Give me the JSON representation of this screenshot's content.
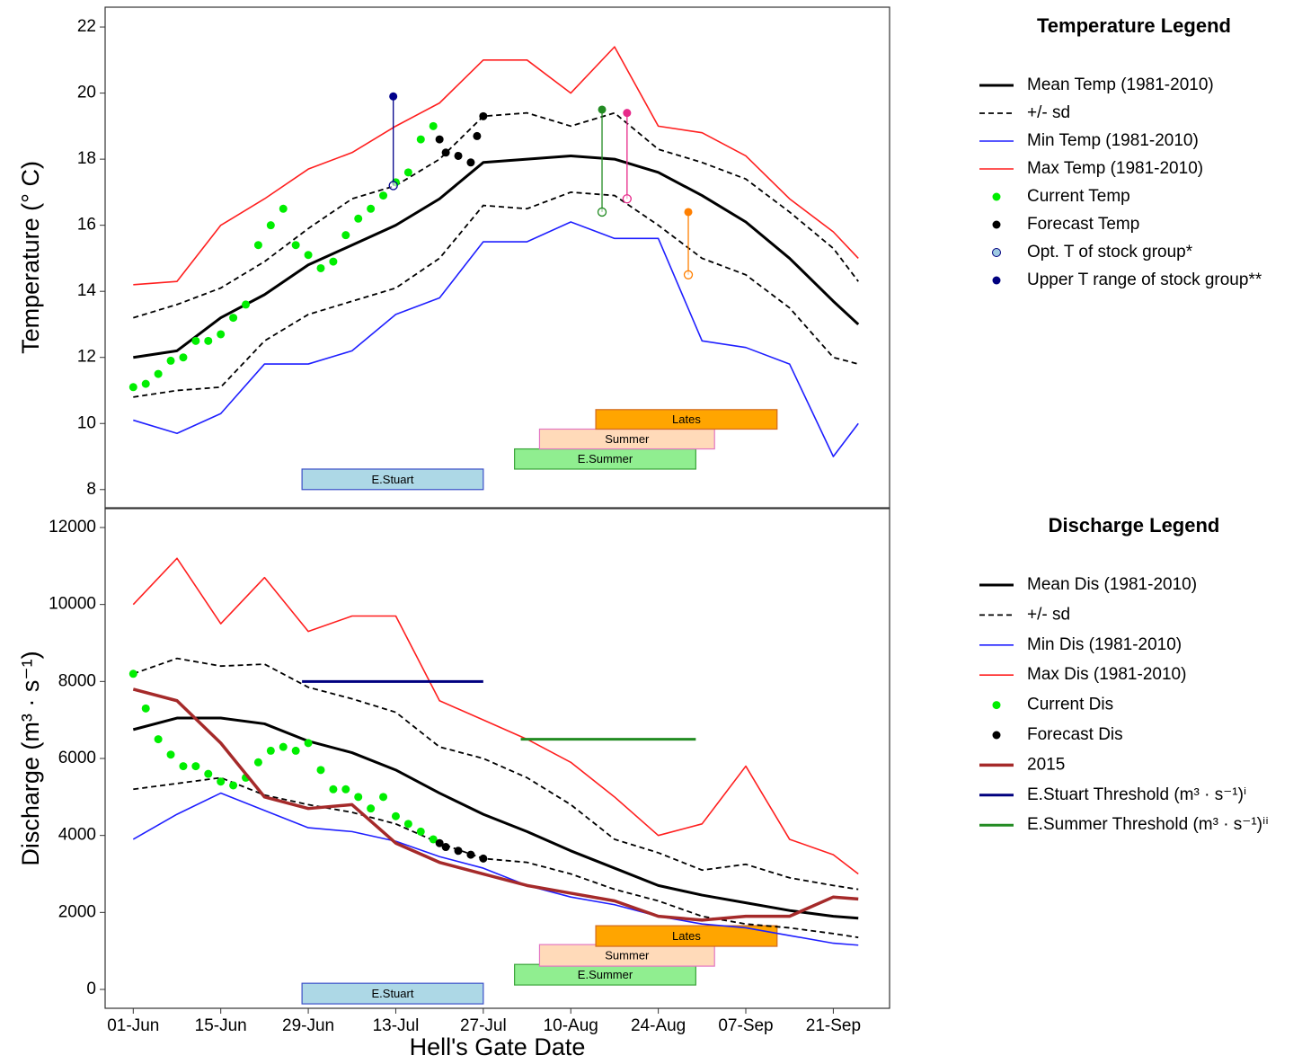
{
  "chart_data": [
    {
      "type": "line",
      "legend_title": "Temperature Legend",
      "y_label": "Temperature (° C)",
      "xlim": [
        -4.5,
        121
      ],
      "ylim": [
        7.45,
        22.6
      ],
      "yticks": [
        8,
        10,
        12,
        14,
        16,
        18,
        20,
        22
      ],
      "x": [
        0,
        7,
        14,
        21,
        28,
        35,
        42,
        49,
        56,
        63,
        70,
        77,
        84,
        91,
        98,
        105,
        112,
        116
      ],
      "series": [
        {
          "name": "Mean Temp (1981-2010)",
          "color": "#000000",
          "style": "solid",
          "values": [
            12.0,
            12.2,
            13.2,
            13.9,
            14.8,
            15.4,
            16.0,
            16.8,
            17.9,
            18.0,
            18.1,
            18.0,
            17.6,
            16.9,
            16.1,
            15.0,
            13.7,
            13.0
          ]
        },
        {
          "name": "+/- sd",
          "color": "#000000",
          "style": "band",
          "upper": [
            13.2,
            13.6,
            14.1,
            14.9,
            15.9,
            16.8,
            17.2,
            18.0,
            19.3,
            19.4,
            19.0,
            19.4,
            18.3,
            17.9,
            17.4,
            16.4,
            15.3,
            14.3
          ],
          "lower": [
            10.8,
            11.0,
            11.1,
            12.5,
            13.3,
            13.7,
            14.1,
            15.0,
            16.6,
            16.5,
            17.0,
            16.9,
            16.0,
            15.0,
            14.5,
            13.5,
            12.0,
            11.8
          ]
        },
        {
          "name": "Min Temp (1981-2010)",
          "color": "#1f1fff",
          "style": "thin",
          "values": [
            10.1,
            9.7,
            10.3,
            11.8,
            11.8,
            12.2,
            13.3,
            13.8,
            15.5,
            15.5,
            16.1,
            15.6,
            15.6,
            12.5,
            12.3,
            11.8,
            9.0,
            10.0
          ]
        },
        {
          "name": "Max Temp (1981-2010)",
          "color": "#ff1f1f",
          "style": "thin",
          "values": [
            14.2,
            14.3,
            16.0,
            16.8,
            17.7,
            18.2,
            19.0,
            19.7,
            21.0,
            21.0,
            20.0,
            21.4,
            19.0,
            18.8,
            18.1,
            16.8,
            15.8,
            15.0
          ]
        },
        {
          "name": "Current Temp",
          "color": "#00ee00",
          "style": "points",
          "x": [
            0,
            2,
            4,
            6,
            8,
            10,
            12,
            14,
            16,
            18,
            20,
            22,
            24,
            26,
            28,
            30,
            32,
            34,
            36,
            38,
            40,
            42,
            44,
            46,
            48
          ],
          "values": [
            11.1,
            11.2,
            11.5,
            11.9,
            12.0,
            12.5,
            12.5,
            12.7,
            13.2,
            13.6,
            15.4,
            16.0,
            16.5,
            15.4,
            15.1,
            14.7,
            14.9,
            15.7,
            16.2,
            16.5,
            16.9,
            17.3,
            17.6,
            18.6,
            19.0
          ]
        },
        {
          "name": "Forecast Temp",
          "color": "#000000",
          "style": "points",
          "x": [
            49,
            50,
            52,
            54,
            55,
            56
          ],
          "values": [
            18.6,
            18.2,
            18.1,
            17.9,
            18.7,
            19.3
          ]
        }
      ],
      "opt_label": "Opt. T of stock group*",
      "opt_color": "#9ecae1",
      "upper_label": "Upper T range of stock group**",
      "upper_color": "#00007f",
      "groups": [
        {
          "name": "E.Stuart",
          "fill": "#add8e6",
          "border": "#3b50c8",
          "color": "#00008b",
          "xrange": [
            27,
            56
          ],
          "yrange": [
            8.0,
            8.62
          ],
          "marker_x": 41.6,
          "opt": 17.2,
          "upper": 19.9
        },
        {
          "name": "E.Summer",
          "fill": "#90ee90",
          "border": "#3aa33a",
          "color": "#228b22",
          "xrange": [
            61,
            90
          ],
          "yrange": [
            8.62,
            9.23
          ],
          "marker_x": 75,
          "opt": 16.4,
          "upper": 19.5
        },
        {
          "name": "Summer",
          "fill": "#ffdab9",
          "border": "#e377c2",
          "color": "#e7298a",
          "xrange": [
            65,
            93
          ],
          "yrange": [
            9.23,
            9.83
          ],
          "marker_x": 79,
          "opt": 16.8,
          "upper": 19.4
        },
        {
          "name": "Lates",
          "fill": "#ffa500",
          "border": "#d2691e",
          "color": "#ff7f00",
          "xrange": [
            74,
            103
          ],
          "yrange": [
            9.83,
            10.42
          ],
          "marker_x": 88.8,
          "opt": 14.5,
          "upper": 16.4
        }
      ]
    },
    {
      "type": "line",
      "legend_title": "Discharge Legend",
      "y_label": "Discharge (m³ · s⁻¹)",
      "x_label": "Hell's Gate Date",
      "xlim": [
        -4.5,
        121
      ],
      "ylim": [
        -490,
        12490
      ],
      "yticks": [
        0,
        2000,
        4000,
        6000,
        8000,
        10000,
        12000
      ],
      "xticks": [
        {
          "value": 0,
          "label": "01-Jun"
        },
        {
          "value": 14,
          "label": "15-Jun"
        },
        {
          "value": 28,
          "label": "29-Jun"
        },
        {
          "value": 42,
          "label": "13-Jul"
        },
        {
          "value": 56,
          "label": "27-Jul"
        },
        {
          "value": 70,
          "label": "10-Aug"
        },
        {
          "value": 84,
          "label": "24-Aug"
        },
        {
          "value": 98,
          "label": "07-Sep"
        },
        {
          "value": 112,
          "label": "21-Sep"
        }
      ],
      "x": [
        0,
        7,
        14,
        21,
        28,
        35,
        42,
        49,
        56,
        63,
        70,
        77,
        84,
        91,
        98,
        105,
        112,
        116
      ],
      "series": [
        {
          "name": "Mean Dis (1981-2010)",
          "color": "#000000",
          "style": "solid",
          "values": [
            6750,
            7050,
            7050,
            6900,
            6450,
            6150,
            5700,
            5100,
            4550,
            4100,
            3600,
            3150,
            2700,
            2450,
            2250,
            2050,
            1900,
            1850
          ]
        },
        {
          "name": "+/- sd",
          "color": "#000000",
          "style": "band",
          "upper": [
            8200,
            8600,
            8400,
            8450,
            7850,
            7550,
            7200,
            6300,
            6000,
            5500,
            4800,
            3900,
            3550,
            3100,
            3250,
            2900,
            2700,
            2600
          ],
          "lower": [
            5200,
            5350,
            5500,
            5050,
            4800,
            4600,
            4300,
            3800,
            3400,
            3300,
            3000,
            2600,
            2300,
            1900,
            1700,
            1600,
            1450,
            1350
          ]
        },
        {
          "name": "Min Dis (1981-2010)",
          "color": "#1f1fff",
          "style": "thin",
          "values": [
            3900,
            4550,
            5100,
            4650,
            4200,
            4100,
            3850,
            3450,
            3150,
            2700,
            2400,
            2200,
            1900,
            1700,
            1600,
            1400,
            1200,
            1150
          ]
        },
        {
          "name": "Max Dis (1981-2010)",
          "color": "#ff1f1f",
          "style": "thin",
          "values": [
            10000,
            11200,
            9500,
            10700,
            9300,
            9700,
            9700,
            7500,
            7000,
            6500,
            5900,
            5000,
            4000,
            4300,
            5800,
            3900,
            3500,
            3000
          ]
        },
        {
          "name": "Current Dis",
          "color": "#00ee00",
          "style": "points",
          "x": [
            0,
            2,
            4,
            6,
            8,
            10,
            12,
            14,
            16,
            18,
            20,
            22,
            24,
            26,
            28,
            30,
            32,
            34,
            36,
            38,
            40,
            42,
            44,
            46,
            48
          ],
          "values": [
            8200,
            7300,
            6500,
            6100,
            5800,
            5800,
            5600,
            5400,
            5300,
            5500,
            5900,
            6200,
            6300,
            6200,
            6400,
            5700,
            5200,
            5200,
            5000,
            4700,
            5000,
            4500,
            4300,
            4100,
            3900
          ]
        },
        {
          "name": "Forecast Dis",
          "color": "#000000",
          "style": "points",
          "x": [
            49,
            50,
            52,
            54,
            56
          ],
          "values": [
            3800,
            3700,
            3600,
            3500,
            3400
          ]
        },
        {
          "name": "2015",
          "color": "#a52a2a",
          "style": "thick",
          "values": [
            7800,
            7500,
            6400,
            5000,
            4700,
            4800,
            3800,
            3300,
            3000,
            2700,
            2500,
            2300,
            1900,
            1800,
            1900,
            1900,
            2400,
            2350
          ]
        },
        {
          "name": "E.Stuart Threshold (m³ · s⁻¹)ⁱ",
          "color": "#00007f",
          "style": "hline",
          "value": 8000,
          "xrange": [
            27,
            56
          ]
        },
        {
          "name": "E.Summer Threshold (m³ · s⁻¹)ⁱⁱ",
          "color": "#228b22",
          "style": "hline",
          "value": 6500,
          "xrange": [
            62,
            90
          ]
        }
      ],
      "groups": [
        {
          "name": "E.Stuart",
          "fill": "#add8e6",
          "border": "#3b50c8",
          "xrange": [
            27,
            56
          ],
          "yrange": [
            -375,
            160
          ]
        },
        {
          "name": "E.Summer",
          "fill": "#90ee90",
          "border": "#3aa33a",
          "xrange": [
            61,
            90
          ],
          "yrange": [
            115,
            650
          ]
        },
        {
          "name": "Summer",
          "fill": "#ffdab9",
          "border": "#e377c2",
          "xrange": [
            65,
            93
          ],
          "yrange": [
            605,
            1165
          ]
        },
        {
          "name": "Lates",
          "fill": "#ffa500",
          "border": "#d2691e",
          "xrange": [
            74,
            103
          ],
          "yrange": [
            1120,
            1655
          ]
        }
      ]
    }
  ]
}
